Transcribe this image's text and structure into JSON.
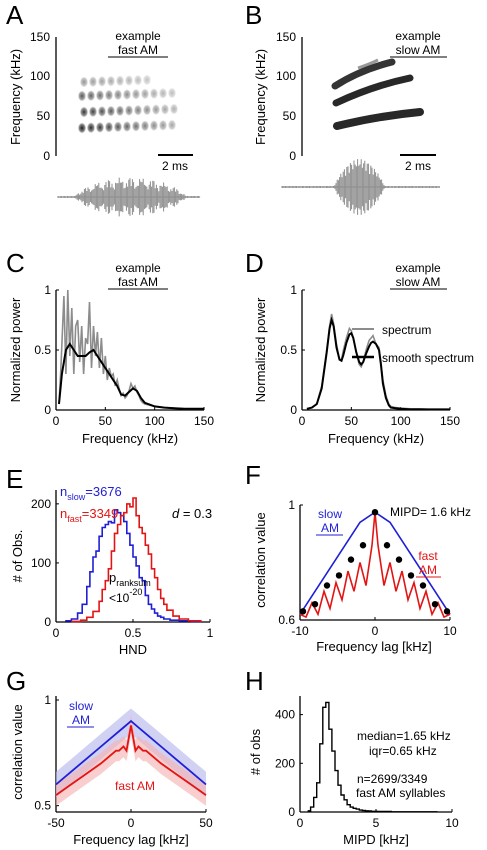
{
  "panels": {
    "A": {
      "label": "A",
      "title_line1": "example",
      "title_line2": "fast AM",
      "ylabel": "Frequency (kHz)",
      "yticks": [
        "150",
        "100",
        "50",
        "0"
      ],
      "scalebar": "2 ms"
    },
    "B": {
      "label": "B",
      "title_line1": "example",
      "title_line2": "slow AM",
      "ylabel": "Frequency (kHz)",
      "yticks": [
        "150",
        "100",
        "50",
        "0"
      ],
      "scalebar": "2 ms"
    },
    "C": {
      "label": "C",
      "title_line1": "example",
      "title_line2": "fast AM",
      "ylabel": "Normalized power",
      "xlabel": "Frequency (kHz)"
    },
    "D": {
      "label": "D",
      "title_line1": "example",
      "title_line2": "slow AM",
      "ylabel": "Normalized power",
      "xlabel": "Frequency (kHz)",
      "legend": [
        "spectrum",
        "smooth spectrum"
      ]
    },
    "E": {
      "label": "E",
      "ylabel": "# of Obs.",
      "xlabel": "HND",
      "n_slow": "n",
      "n_slow_sub": "slow",
      "n_slow_val": "=3676",
      "n_fast": "n",
      "n_fast_sub": "fast",
      "n_fast_val": "=3349",
      "d_label": "d",
      "d_val": " = 0.3",
      "p_label": "p",
      "p_sub": "ranksum",
      "p_val": "<10",
      "p_exp": "-20"
    },
    "F": {
      "label": "F",
      "ylabel": "correlation value",
      "xlabel": "Frequency lag [kHz]",
      "slow_line1": "slow",
      "slow_line2": "AM",
      "fast_line1": "fast",
      "fast_line2": "AM",
      "mipd": "MIPD= 1.6 kHz"
    },
    "G": {
      "label": "G",
      "ylabel": "correlation value",
      "xlabel": "Frequency lag [kHz]",
      "slow_line1": "slow",
      "slow_line2": "AM",
      "fast_label": "fast AM"
    },
    "H": {
      "label": "H",
      "ylabel": "# of obs",
      "xlabel": "MIPD [kHz]",
      "stat1": "median=1.65 kHz",
      "stat2": "iqr=0.65 kHz",
      "stat3": "n=2699/3349",
      "stat4": "fast AM syllables"
    }
  },
  "colors": {
    "slow": "#1f1fd6",
    "fast": "#e31414",
    "spectrum": "#8c8c8c",
    "smooth": "#000000",
    "slow_band": "#b9b9ee",
    "fast_band": "#f4b3b3",
    "marker": "#000000"
  },
  "chart_data": [
    {
      "panel": "C",
      "type": "line",
      "title": "example fast AM",
      "xlabel": "Frequency (kHz)",
      "ylabel": "Normalized power",
      "xlim": [
        0,
        150
      ],
      "ylim": [
        0,
        1
      ],
      "xticks": [
        0,
        50,
        100,
        150
      ],
      "yticks": [
        0,
        0.5,
        1
      ],
      "series": [
        {
          "name": "spectrum",
          "x": [
            3,
            5,
            8,
            10,
            12,
            14,
            16,
            18,
            20,
            22,
            24,
            26,
            28,
            30,
            32,
            34,
            36,
            38,
            40,
            42,
            44,
            46,
            48,
            50,
            52,
            54,
            56,
            58,
            60,
            62,
            64,
            66,
            68,
            70,
            72,
            74,
            76,
            78,
            80,
            82,
            84,
            86,
            88,
            90,
            95,
            100,
            110,
            120,
            130,
            140,
            150
          ],
          "y": [
            0.05,
            0.35,
            0.95,
            0.3,
            1.0,
            0.45,
            0.85,
            0.3,
            0.7,
            0.75,
            0.4,
            0.7,
            0.3,
            0.6,
            0.55,
            0.9,
            0.35,
            0.7,
            0.45,
            0.65,
            0.35,
            0.6,
            0.3,
            0.45,
            0.25,
            0.35,
            0.28,
            0.3,
            0.2,
            0.25,
            0.18,
            0.12,
            0.14,
            0.1,
            0.12,
            0.16,
            0.22,
            0.18,
            0.2,
            0.15,
            0.12,
            0.08,
            0.06,
            0.05,
            0.04,
            0.03,
            0.02,
            0.015,
            0.01,
            0.01,
            0.01
          ]
        },
        {
          "name": "smooth spectrum",
          "x": [
            3,
            6,
            10,
            14,
            18,
            22,
            26,
            30,
            34,
            38,
            42,
            46,
            50,
            54,
            58,
            62,
            66,
            70,
            74,
            78,
            82,
            86,
            90,
            100,
            110,
            120,
            130,
            140,
            150
          ],
          "y": [
            0.05,
            0.3,
            0.5,
            0.55,
            0.5,
            0.45,
            0.45,
            0.45,
            0.48,
            0.5,
            0.45,
            0.4,
            0.35,
            0.3,
            0.25,
            0.2,
            0.13,
            0.12,
            0.15,
            0.18,
            0.16,
            0.1,
            0.06,
            0.03,
            0.02,
            0.015,
            0.01,
            0.01,
            0.01
          ]
        }
      ]
    },
    {
      "panel": "D",
      "type": "line",
      "title": "example slow AM",
      "xlabel": "Frequency (kHz)",
      "ylabel": "Normalized power",
      "xlim": [
        0,
        150
      ],
      "ylim": [
        0,
        1
      ],
      "xticks": [
        0,
        50,
        100,
        150
      ],
      "yticks": [
        0,
        0.5,
        1
      ],
      "series": [
        {
          "name": "spectrum",
          "x": [
            5,
            10,
            15,
            20,
            25,
            28,
            30,
            32,
            35,
            38,
            40,
            42,
            45,
            48,
            50,
            52,
            55,
            58,
            60,
            62,
            65,
            68,
            70,
            72,
            75,
            78,
            80,
            82,
            85,
            88,
            90,
            95,
            100,
            110,
            120,
            130,
            140,
            150
          ],
          "y": [
            0.01,
            0.02,
            0.05,
            0.2,
            0.5,
            0.7,
            0.8,
            0.72,
            0.55,
            0.42,
            0.42,
            0.5,
            0.6,
            0.68,
            0.66,
            0.6,
            0.48,
            0.38,
            0.36,
            0.4,
            0.5,
            0.58,
            0.6,
            0.62,
            0.55,
            0.52,
            0.4,
            0.25,
            0.12,
            0.05,
            0.03,
            0.02,
            0.015,
            0.01,
            0.01,
            0.005,
            0.005,
            0.005
          ]
        },
        {
          "name": "smooth spectrum",
          "x": [
            5,
            10,
            15,
            20,
            25,
            28,
            30,
            32,
            35,
            38,
            40,
            42,
            45,
            48,
            50,
            52,
            55,
            58,
            60,
            62,
            65,
            68,
            70,
            72,
            75,
            78,
            80,
            82,
            85,
            88,
            90,
            95,
            100,
            110,
            120,
            130,
            140,
            150
          ],
          "y": [
            0.01,
            0.02,
            0.05,
            0.18,
            0.48,
            0.68,
            0.75,
            0.7,
            0.52,
            0.42,
            0.41,
            0.46,
            0.56,
            0.63,
            0.64,
            0.6,
            0.48,
            0.4,
            0.38,
            0.4,
            0.47,
            0.53,
            0.56,
            0.57,
            0.55,
            0.5,
            0.38,
            0.22,
            0.1,
            0.04,
            0.02,
            0.015,
            0.01,
            0.005,
            0.005,
            0.005,
            0.005,
            0.005
          ]
        }
      ]
    },
    {
      "panel": "E",
      "type": "line",
      "xlabel": "HND",
      "ylabel": "# of Obs.",
      "xlim": [
        0,
        1
      ],
      "ylim": [
        0,
        215
      ],
      "xticks": [
        0,
        0.5,
        1
      ],
      "yticks": [
        0,
        100,
        200
      ],
      "series": [
        {
          "name": "slow",
          "x": [
            0.06,
            0.1,
            0.14,
            0.17,
            0.2,
            0.22,
            0.24,
            0.26,
            0.28,
            0.3,
            0.32,
            0.34,
            0.36,
            0.38,
            0.4,
            0.42,
            0.44,
            0.46,
            0.48,
            0.5,
            0.52,
            0.54,
            0.56,
            0.58,
            0.6,
            0.62,
            0.64,
            0.66,
            0.68,
            0.7,
            0.74,
            0.8,
            0.88,
            0.94
          ],
          "y": [
            2,
            5,
            15,
            30,
            60,
            85,
            110,
            120,
            145,
            160,
            165,
            170,
            168,
            190,
            185,
            180,
            170,
            150,
            130,
            110,
            95,
            75,
            70,
            45,
            30,
            22,
            15,
            10,
            8,
            5,
            3,
            2,
            1,
            0
          ]
        },
        {
          "name": "fast",
          "x": [
            0.1,
            0.16,
            0.2,
            0.24,
            0.28,
            0.3,
            0.32,
            0.34,
            0.36,
            0.38,
            0.4,
            0.42,
            0.44,
            0.46,
            0.48,
            0.5,
            0.52,
            0.54,
            0.56,
            0.58,
            0.6,
            0.62,
            0.64,
            0.66,
            0.68,
            0.7,
            0.72,
            0.76,
            0.8,
            0.86,
            0.94
          ],
          "y": [
            1,
            3,
            8,
            18,
            35,
            55,
            70,
            90,
            120,
            150,
            165,
            180,
            185,
            200,
            195,
            210,
            180,
            160,
            150,
            130,
            115,
            90,
            75,
            55,
            40,
            30,
            20,
            10,
            5,
            2,
            0
          ]
        }
      ]
    },
    {
      "panel": "F",
      "type": "line",
      "xlabel": "Frequency lag [kHz]",
      "ylabel": "correlation value",
      "xlim": [
        -10,
        10
      ],
      "ylim": [
        0.6,
        1
      ],
      "xticks": [
        -10,
        0,
        10
      ],
      "yticks": [
        0.6,
        1
      ],
      "series": [
        {
          "name": "slow AM",
          "x": [
            -10,
            -8,
            -6,
            -4,
            -2,
            0,
            2,
            4,
            6,
            8,
            10
          ],
          "y": [
            0.62,
            0.7,
            0.78,
            0.86,
            0.94,
            0.975,
            0.94,
            0.86,
            0.78,
            0.7,
            0.62
          ]
        },
        {
          "name": "fast AM",
          "x": [
            -10,
            -9.2,
            -8.4,
            -7.6,
            -6.8,
            -6,
            -5.2,
            -4.4,
            -3.6,
            -2.8,
            -2,
            -1.2,
            -0.4,
            0,
            0.4,
            1.2,
            2,
            2.8,
            3.6,
            4.4,
            5.2,
            6,
            6.8,
            7.6,
            8.4,
            9.2,
            10
          ],
          "y": [
            0.62,
            0.61,
            0.66,
            0.62,
            0.7,
            0.64,
            0.73,
            0.67,
            0.77,
            0.7,
            0.8,
            0.72,
            0.86,
            0.975,
            0.86,
            0.72,
            0.8,
            0.7,
            0.77,
            0.67,
            0.73,
            0.64,
            0.7,
            0.62,
            0.66,
            0.61,
            0.62
          ]
        },
        {
          "name": "peaks",
          "x": [
            -9.6,
            -8,
            -6.4,
            -4.8,
            -3.2,
            -1.6,
            0,
            1.6,
            3.2,
            4.8,
            6.4,
            8,
            9.6
          ],
          "y": [
            0.63,
            0.655,
            0.72,
            0.755,
            0.81,
            0.86,
            0.975,
            0.86,
            0.81,
            0.755,
            0.72,
            0.655,
            0.63
          ]
        }
      ]
    },
    {
      "panel": "G",
      "type": "area",
      "xlabel": "Frequency lag [kHz]",
      "ylabel": "correlation value",
      "xlim": [
        -50,
        50
      ],
      "ylim": [
        0.47,
        1
      ],
      "xticks": [
        -50,
        0,
        50
      ],
      "yticks": [
        0.5,
        1
      ],
      "series": [
        {
          "name": "slow AM",
          "x": [
            -50,
            -40,
            -30,
            -20,
            -10,
            -5,
            0,
            5,
            10,
            20,
            30,
            40,
            50
          ],
          "y": [
            0.6,
            0.66,
            0.72,
            0.78,
            0.84,
            0.87,
            0.9,
            0.87,
            0.84,
            0.78,
            0.72,
            0.66,
            0.6
          ],
          "band": 0.06
        },
        {
          "name": "fast AM",
          "x": [
            -50,
            -40,
            -30,
            -20,
            -15,
            -10,
            -8,
            -5,
            -3,
            0,
            3,
            5,
            8,
            10,
            15,
            20,
            30,
            40,
            50
          ],
          "y": [
            0.55,
            0.6,
            0.65,
            0.7,
            0.73,
            0.76,
            0.76,
            0.78,
            0.76,
            0.88,
            0.76,
            0.78,
            0.76,
            0.76,
            0.73,
            0.7,
            0.65,
            0.6,
            0.55
          ],
          "band": 0.05
        }
      ]
    },
    {
      "panel": "H",
      "type": "bar",
      "xlabel": "MIPD [kHz]",
      "ylabel": "# of obs",
      "xlim": [
        0,
        10
      ],
      "ylim": [
        0,
        460
      ],
      "xticks": [
        0,
        5,
        10
      ],
      "yticks": [
        0,
        200,
        400
      ],
      "series": [
        {
          "name": "MIPD",
          "x": [
            0.5,
            0.7,
            0.9,
            1.1,
            1.3,
            1.5,
            1.7,
            1.9,
            2.1,
            2.3,
            2.5,
            2.7,
            2.9,
            3.1,
            3.3,
            3.5,
            3.7,
            3.9,
            4.1,
            4.3,
            4.5,
            4.7,
            4.9,
            5.1,
            5.5,
            6,
            7,
            8,
            9
          ],
          "y": [
            5,
            20,
            60,
            120,
            280,
            430,
            450,
            340,
            250,
            170,
            110,
            70,
            50,
            30,
            20,
            15,
            12,
            8,
            6,
            5,
            4,
            3,
            3,
            2,
            2,
            1,
            1,
            1,
            0
          ]
        }
      ]
    }
  ]
}
